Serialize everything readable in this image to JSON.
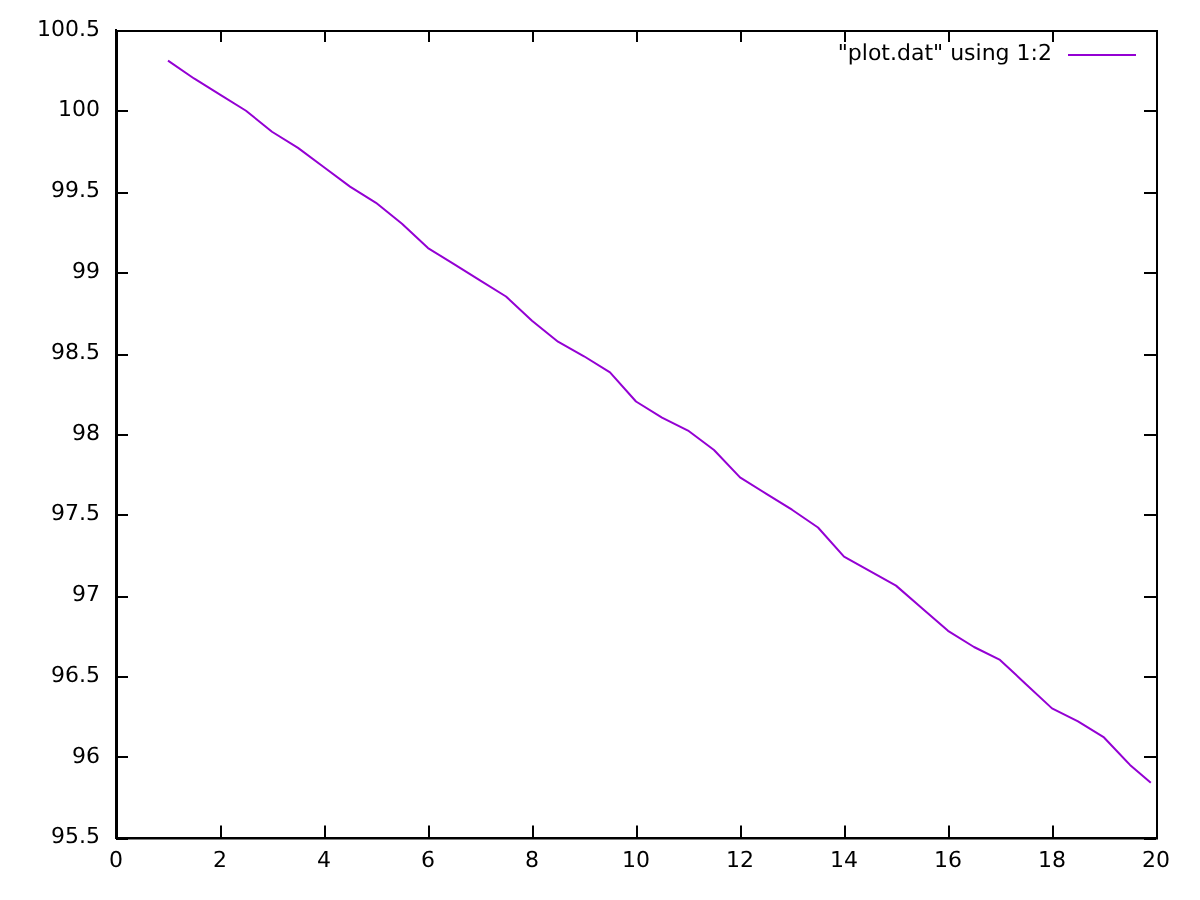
{
  "chart_data": {
    "type": "line",
    "x": [
      1,
      1.5,
      2,
      2.5,
      3,
      3.5,
      4,
      4.5,
      5,
      5.5,
      6,
      6.5,
      7,
      7.5,
      8,
      8.5,
      9,
      9.5,
      10,
      10.5,
      11,
      11.5,
      12,
      12.5,
      13,
      13.5,
      14,
      14.5,
      15,
      15.5,
      16,
      16.5,
      17,
      17.5,
      18,
      18.5,
      19,
      19.5,
      19.9
    ],
    "series": [
      {
        "name": "\"plot.dat\" using 1:2",
        "color": "#9400d3",
        "values": [
          100.31,
          100.2,
          100.1,
          100.0,
          99.87,
          99.77,
          99.65,
          99.53,
          99.43,
          99.3,
          99.15,
          99.05,
          98.95,
          98.85,
          98.7,
          98.57,
          98.48,
          98.38,
          98.2,
          98.1,
          98.02,
          97.9,
          97.73,
          97.63,
          97.53,
          97.42,
          97.24,
          97.15,
          97.06,
          96.92,
          96.78,
          96.68,
          96.6,
          96.45,
          96.3,
          96.22,
          96.12,
          95.95,
          95.84
        ]
      }
    ],
    "xlim": [
      0,
      20
    ],
    "xticks": [
      0,
      2,
      4,
      6,
      8,
      10,
      12,
      14,
      16,
      18,
      20
    ],
    "ylim": [
      95.5,
      100.5
    ],
    "yticks": [
      95.5,
      96,
      96.5,
      97,
      97.5,
      98,
      98.5,
      99,
      99.5,
      100,
      100.5
    ],
    "legend": "top right",
    "marker": "none",
    "line_style": "solid"
  }
}
